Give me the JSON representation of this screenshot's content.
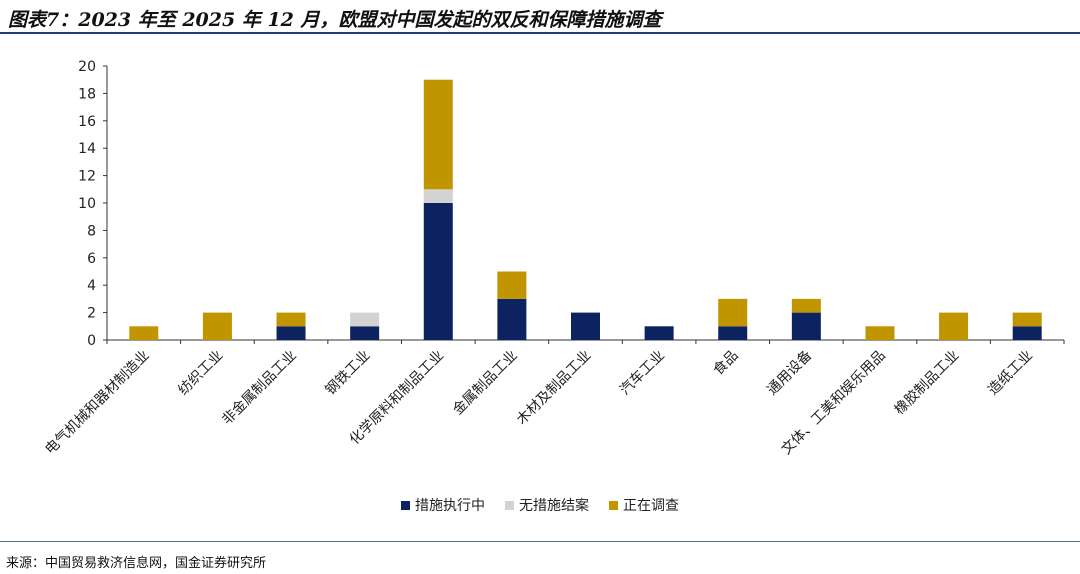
{
  "title": "图表7：2023 年至 2025 年 12 月，欧盟对中国发起的双反和保障措施调查",
  "source": "来源：中国贸易救济信息网，国金证券研究所",
  "chart_data": {
    "type": "bar",
    "stacked": true,
    "categories": [
      "电气机械和器材制造业",
      "纺织工业",
      "非金属制品工业",
      "钢铁工业",
      "化学原料和制品工业",
      "金属制品工业",
      "木材及制品工业",
      "汽车工业",
      "食品",
      "通用设备",
      "文体、工美和娱乐用品",
      "橡胶制品工业",
      "造纸工业"
    ],
    "series": [
      {
        "name": "措施执行中",
        "color": "#0d2260",
        "values": [
          0,
          0,
          1,
          1,
          10,
          3,
          2,
          1,
          1,
          2,
          0,
          0,
          1
        ]
      },
      {
        "name": "无措施结案",
        "color": "#d3d3d3",
        "values": [
          0,
          0,
          0,
          1,
          1,
          0,
          0,
          0,
          0,
          0,
          0,
          0,
          0
        ]
      },
      {
        "name": "正在调查",
        "color": "#c09500",
        "values": [
          1,
          2,
          1,
          0,
          8,
          2,
          0,
          0,
          2,
          1,
          1,
          2,
          1
        ]
      }
    ],
    "ylim": [
      0,
      20
    ],
    "yticks": [
      0,
      2,
      4,
      6,
      8,
      10,
      12,
      14,
      16,
      18,
      20
    ],
    "legend_position": "bottom",
    "grid": false
  }
}
